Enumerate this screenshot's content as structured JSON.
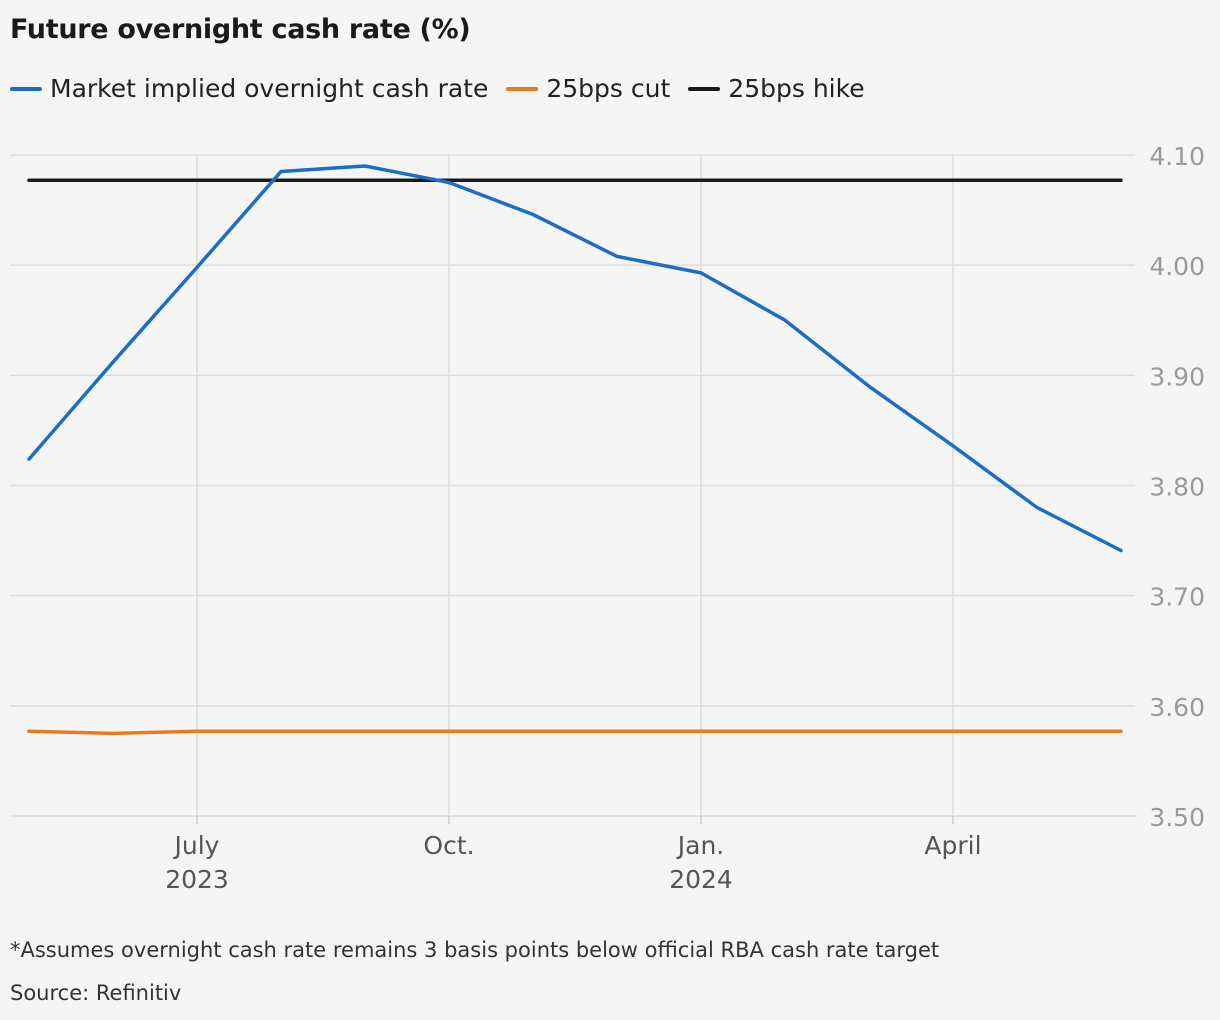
{
  "chart_data": {
    "type": "line",
    "title": "Future overnight cash rate (%)",
    "x": [
      "2023-05",
      "2023-06",
      "2023-07",
      "2023-08",
      "2023-09",
      "2023-10",
      "2023-11",
      "2023-12",
      "2024-01",
      "2024-02",
      "2024-03",
      "2024-04",
      "2024-05",
      "2024-06"
    ],
    "series": [
      {
        "name": "Market implied overnight cash rate",
        "color": "#1a6ec4",
        "values": [
          3.824,
          3.912,
          3.998,
          4.085,
          4.09,
          4.075,
          4.046,
          4.008,
          3.993,
          3.95,
          3.89,
          3.836,
          3.78,
          3.741
        ]
      },
      {
        "name": "25bps cut",
        "color": "#ec7a1c",
        "values": [
          3.577,
          3.575,
          3.577,
          3.577,
          3.577,
          3.577,
          3.577,
          3.577,
          3.577,
          3.577,
          3.577,
          3.577,
          3.577,
          3.577
        ]
      },
      {
        "name": "25bps hike",
        "color": "#1a1a1a",
        "values": [
          4.077,
          4.077,
          4.077,
          4.077,
          4.077,
          4.077,
          4.077,
          4.077,
          4.077,
          4.077,
          4.077,
          4.077,
          4.077,
          4.077
        ]
      }
    ],
    "xticks": [
      {
        "at": "2023-07",
        "label": "July",
        "sublabel": "2023"
      },
      {
        "at": "2023-10",
        "label": "Oct.",
        "sublabel": ""
      },
      {
        "at": "2024-01",
        "label": "Jan.",
        "sublabel": "2024"
      },
      {
        "at": "2024-04",
        "label": "April",
        "sublabel": ""
      }
    ],
    "yticks": [
      "3.50",
      "3.60",
      "3.70",
      "3.80",
      "3.90",
      "4.00",
      "4.10"
    ],
    "ylim": [
      3.5,
      4.1
    ],
    "xlabel": "",
    "ylabel": "",
    "grid": true,
    "legend": "top-left"
  },
  "footnote": "*Assumes overnight cash rate remains 3 basis points below official RBA cash rate target",
  "source": "Source: Refinitiv"
}
